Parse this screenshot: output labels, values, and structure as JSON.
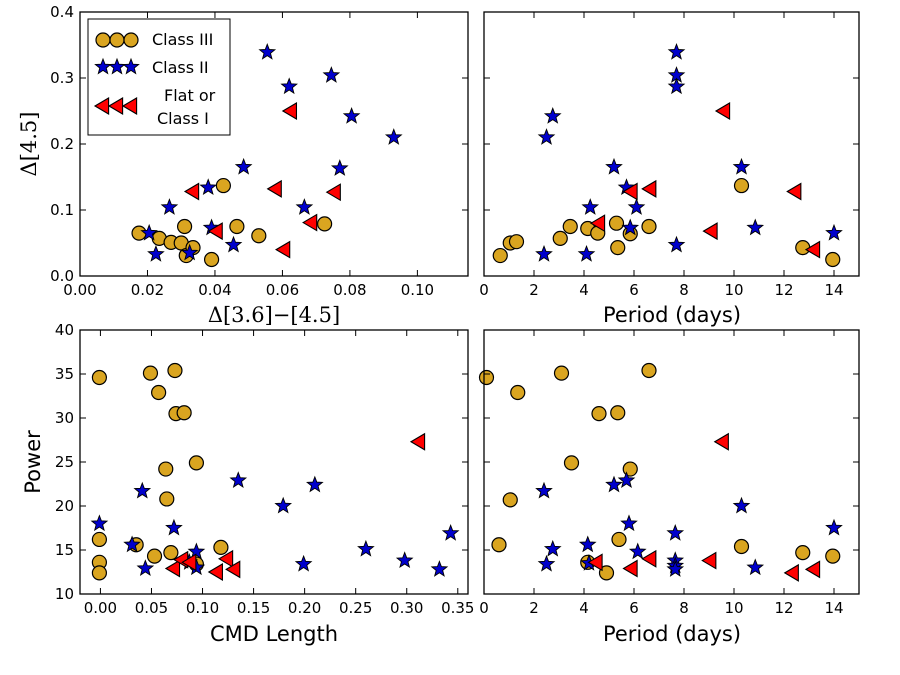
{
  "colors": {
    "class_iii": "#DAA520",
    "class_ii": "#0000CC",
    "flat_class_i": "#FF0000",
    "edge": "#000000"
  },
  "legend": {
    "entries": [
      {
        "label": "Class III",
        "marker": "circle",
        "series": "class_iii"
      },
      {
        "label": "Class II",
        "marker": "star",
        "series": "class_ii"
      },
      {
        "label": "Flat or\nClass I",
        "marker": "triangle-left",
        "series": "flat_class_i"
      }
    ],
    "placement": "top-left of top-left panel"
  },
  "chart_data": [
    {
      "type": "scatter",
      "panel": "top-left",
      "xlabel": "Δ[3.6]−[4.5]",
      "ylabel": "Δ[4.5]",
      "xlim": [
        0.0,
        0.115
      ],
      "ylim": [
        0.0,
        0.4
      ],
      "xticks": [
        0.0,
        0.02,
        0.04,
        0.06,
        0.08,
        0.1
      ],
      "xtick_labels": [
        "0.00",
        "0.02",
        "0.04",
        "0.06",
        "0.08",
        "0.10"
      ],
      "yticks": [
        0.0,
        0.1,
        0.2,
        0.3,
        0.4
      ],
      "ytick_labels": [
        "0.0",
        "0.1",
        "0.2",
        "0.3",
        "0.4"
      ],
      "series": [
        {
          "name": "class_iii",
          "points": [
            [
              0.0175,
              0.065
            ],
            [
              0.0235,
              0.057
            ],
            [
              0.027,
              0.051
            ],
            [
              0.03,
              0.05
            ],
            [
              0.031,
              0.075
            ],
            [
              0.0315,
              0.031
            ],
            [
              0.0335,
              0.043
            ],
            [
              0.039,
              0.025
            ],
            [
              0.0425,
              0.137
            ],
            [
              0.0465,
              0.075
            ],
            [
              0.053,
              0.061
            ],
            [
              0.0725,
              0.079
            ]
          ]
        },
        {
          "name": "class_ii",
          "points": [
            [
              0.0205,
              0.065
            ],
            [
              0.0225,
              0.033
            ],
            [
              0.0265,
              0.104
            ],
            [
              0.0325,
              0.035
            ],
            [
              0.038,
              0.134
            ],
            [
              0.039,
              0.073
            ],
            [
              0.0455,
              0.047
            ],
            [
              0.0485,
              0.165
            ],
            [
              0.0555,
              0.339
            ],
            [
              0.062,
              0.287
            ],
            [
              0.0665,
              0.104
            ],
            [
              0.0745,
              0.304
            ],
            [
              0.077,
              0.163
            ],
            [
              0.0805,
              0.242
            ],
            [
              0.093,
              0.21
            ]
          ]
        },
        {
          "name": "flat_class_i",
          "points": [
            [
              0.0335,
              0.128
            ],
            [
              0.0405,
              0.068
            ],
            [
              0.058,
              0.132
            ],
            [
              0.0605,
              0.04
            ],
            [
              0.0625,
              0.25
            ],
            [
              0.0685,
              0.081
            ],
            [
              0.0755,
              0.127
            ]
          ]
        }
      ]
    },
    {
      "type": "scatter",
      "panel": "top-right",
      "xlabel": "Period (days)",
      "ylabel": "",
      "xlim": [
        0,
        15
      ],
      "ylim": [
        0.0,
        0.4
      ],
      "xticks": [
        0,
        2,
        4,
        6,
        8,
        10,
        12,
        14
      ],
      "xtick_labels": [
        "0",
        "2",
        "4",
        "6",
        "8",
        "10",
        "12",
        "14"
      ],
      "yticks": [
        0.0,
        0.1,
        0.2,
        0.3,
        0.4
      ],
      "series": [
        {
          "name": "class_iii",
          "points": [
            [
              0.65,
              0.031
            ],
            [
              1.05,
              0.05
            ],
            [
              1.3,
              0.052
            ],
            [
              3.05,
              0.057
            ],
            [
              3.45,
              0.075
            ],
            [
              4.15,
              0.072
            ],
            [
              4.55,
              0.065
            ],
            [
              5.3,
              0.08
            ],
            [
              5.35,
              0.043
            ],
            [
              5.85,
              0.064
            ],
            [
              6.6,
              0.075
            ],
            [
              10.3,
              0.137
            ],
            [
              12.75,
              0.043
            ],
            [
              13.95,
              0.025
            ]
          ]
        },
        {
          "name": "class_ii",
          "points": [
            [
              2.4,
              0.033
            ],
            [
              2.5,
              0.21
            ],
            [
              2.75,
              0.242
            ],
            [
              4.1,
              0.033
            ],
            [
              4.25,
              0.104
            ],
            [
              5.2,
              0.165
            ],
            [
              5.7,
              0.134
            ],
            [
              5.85,
              0.073
            ],
            [
              6.1,
              0.104
            ],
            [
              7.7,
              0.339
            ],
            [
              7.7,
              0.304
            ],
            [
              7.7,
              0.287
            ],
            [
              7.7,
              0.047
            ],
            [
              10.3,
              0.165
            ],
            [
              10.85,
              0.073
            ],
            [
              14.0,
              0.065
            ]
          ]
        },
        {
          "name": "flat_class_i",
          "points": [
            [
              4.6,
              0.08
            ],
            [
              5.9,
              0.128
            ],
            [
              6.65,
              0.132
            ],
            [
              9.1,
              0.068
            ],
            [
              9.6,
              0.25
            ],
            [
              12.45,
              0.128
            ],
            [
              13.2,
              0.04
            ]
          ]
        }
      ]
    },
    {
      "type": "scatter",
      "panel": "bottom-left",
      "xlabel": "CMD Length",
      "ylabel": "Power",
      "xlim": [
        -0.02,
        0.36
      ],
      "ylim": [
        10,
        40
      ],
      "xticks": [
        0.0,
        0.05,
        0.1,
        0.15,
        0.2,
        0.25,
        0.3,
        0.35
      ],
      "xtick_labels": [
        "0.00",
        "0.05",
        "0.10",
        "0.15",
        "0.20",
        "0.25",
        "0.30",
        "0.35"
      ],
      "yticks": [
        10,
        15,
        20,
        25,
        30,
        35,
        40
      ],
      "ytick_labels": [
        "10",
        "15",
        "20",
        "25",
        "30",
        "35",
        "40"
      ],
      "series": [
        {
          "name": "class_iii",
          "points": [
            [
              -0.001,
              34.6
            ],
            [
              -0.001,
              16.2
            ],
            [
              -0.001,
              13.6
            ],
            [
              -0.001,
              12.4
            ],
            [
              0.035,
              15.6
            ],
            [
              0.049,
              35.1
            ],
            [
              0.053,
              14.3
            ],
            [
              0.057,
              32.9
            ],
            [
              0.064,
              24.2
            ],
            [
              0.065,
              20.8
            ],
            [
              0.069,
              14.7
            ],
            [
              0.073,
              35.4
            ],
            [
              0.074,
              30.5
            ],
            [
              0.082,
              30.6
            ],
            [
              0.094,
              24.9
            ],
            [
              0.094,
              13.4
            ],
            [
              0.118,
              15.3
            ]
          ]
        },
        {
          "name": "class_ii",
          "points": [
            [
              -0.001,
              18.0
            ],
            [
              0.031,
              15.6
            ],
            [
              0.041,
              21.7
            ],
            [
              0.044,
              12.9
            ],
            [
              0.072,
              17.5
            ],
            [
              0.087,
              13.6
            ],
            [
              0.094,
              14.8
            ],
            [
              0.094,
              13.0
            ],
            [
              0.135,
              22.9
            ],
            [
              0.179,
              20.0
            ],
            [
              0.199,
              13.4
            ],
            [
              0.21,
              22.4
            ],
            [
              0.26,
              15.1
            ],
            [
              0.298,
              13.8
            ],
            [
              0.332,
              12.8
            ],
            [
              0.343,
              16.9
            ]
          ]
        },
        {
          "name": "flat_class_i",
          "points": [
            [
              0.072,
              12.9
            ],
            [
              0.08,
              13.9
            ],
            [
              0.088,
              13.6
            ],
            [
              0.114,
              12.5
            ],
            [
              0.124,
              14.0
            ],
            [
              0.131,
              12.8
            ],
            [
              0.312,
              27.3
            ]
          ]
        }
      ]
    },
    {
      "type": "scatter",
      "panel": "bottom-right",
      "xlabel": "Period (days)",
      "ylabel": "",
      "xlim": [
        0,
        15
      ],
      "ylim": [
        10,
        40
      ],
      "xticks": [
        0,
        2,
        4,
        6,
        8,
        10,
        12,
        14
      ],
      "xtick_labels": [
        "0",
        "2",
        "4",
        "6",
        "8",
        "10",
        "12",
        "14"
      ],
      "yticks": [
        10,
        15,
        20,
        25,
        30,
        35,
        40
      ],
      "series": [
        {
          "name": "class_iii",
          "points": [
            [
              0.1,
              34.6
            ],
            [
              0.6,
              15.6
            ],
            [
              1.05,
              20.7
            ],
            [
              1.35,
              32.9
            ],
            [
              3.1,
              35.1
            ],
            [
              3.5,
              24.9
            ],
            [
              4.15,
              13.6
            ],
            [
              4.6,
              30.5
            ],
            [
              4.9,
              12.4
            ],
            [
              5.35,
              30.6
            ],
            [
              5.4,
              16.2
            ],
            [
              5.85,
              24.2
            ],
            [
              6.6,
              35.4
            ],
            [
              10.3,
              15.4
            ],
            [
              12.75,
              14.7
            ],
            [
              13.95,
              14.3
            ]
          ]
        },
        {
          "name": "class_ii",
          "points": [
            [
              2.4,
              21.7
            ],
            [
              2.5,
              13.4
            ],
            [
              2.75,
              15.1
            ],
            [
              4.15,
              15.6
            ],
            [
              4.2,
              13.5
            ],
            [
              5.2,
              22.4
            ],
            [
              5.7,
              22.9
            ],
            [
              5.8,
              18.0
            ],
            [
              6.15,
              14.8
            ],
            [
              7.65,
              16.9
            ],
            [
              7.65,
              13.8
            ],
            [
              7.65,
              13.2
            ],
            [
              7.65,
              12.8
            ],
            [
              10.3,
              20.0
            ],
            [
              10.85,
              13.0
            ],
            [
              14.0,
              17.5
            ]
          ]
        },
        {
          "name": "flat_class_i",
          "points": [
            [
              4.5,
              13.6
            ],
            [
              5.9,
              12.9
            ],
            [
              6.65,
              14.0
            ],
            [
              9.05,
              13.8
            ],
            [
              9.55,
              27.3
            ],
            [
              12.35,
              12.4
            ],
            [
              13.2,
              12.8
            ]
          ]
        }
      ]
    }
  ]
}
